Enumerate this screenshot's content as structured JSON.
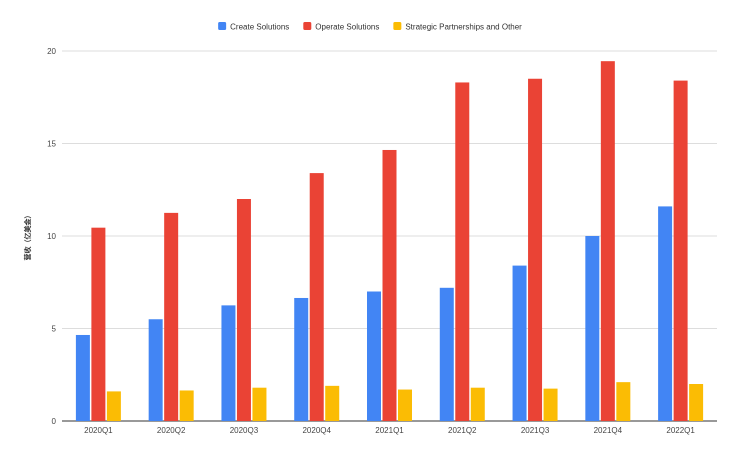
{
  "chart_data": {
    "type": "bar",
    "title": "",
    "xlabel": "",
    "ylabel": "营收（亿美金）",
    "ylim": [
      0,
      20
    ],
    "yticks": [
      0,
      5,
      10,
      15,
      20
    ],
    "grid": true,
    "legend_position": "top-center",
    "categories": [
      "2020Q1",
      "2020Q2",
      "2020Q3",
      "2020Q4",
      "2021Q1",
      "2021Q2",
      "2021Q3",
      "2021Q4",
      "2022Q1"
    ],
    "series": [
      {
        "name": "Create Solutions",
        "color": "#4285f4",
        "values": [
          4.65,
          5.5,
          6.25,
          6.65,
          7.0,
          7.2,
          8.4,
          10.0,
          11.6
        ]
      },
      {
        "name": "Operate Solutions",
        "color": "#ea4335",
        "values": [
          10.45,
          11.25,
          12.0,
          13.4,
          14.65,
          18.3,
          18.5,
          19.45,
          18.4
        ]
      },
      {
        "name": "Strategic Partnerships and Other",
        "color": "#fbbc04",
        "values": [
          1.6,
          1.65,
          1.8,
          1.9,
          1.7,
          1.8,
          1.75,
          2.1,
          2.0
        ]
      }
    ]
  }
}
